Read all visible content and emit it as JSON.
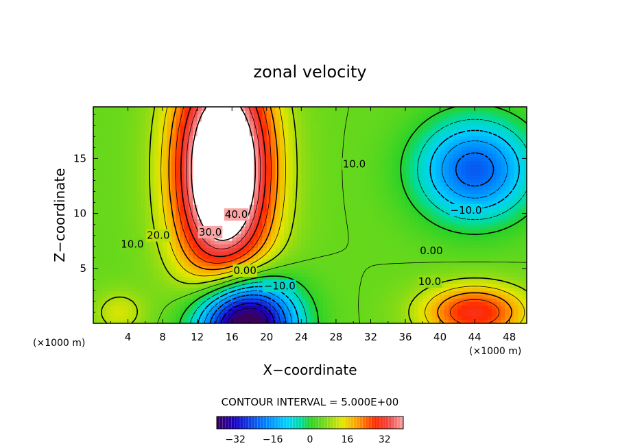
{
  "chart_data": {
    "type": "heatmap",
    "title": "zonal velocity",
    "xlabel": "X−coordinate",
    "ylabel": "Z−coordinate",
    "x_unit_left": "(×1000 m)",
    "x_unit_right": "(×1000 m)",
    "xlim": [
      0,
      50
    ],
    "ylim": [
      0,
      19.7
    ],
    "xticks": [
      4,
      8,
      12,
      16,
      20,
      24,
      28,
      32,
      36,
      40,
      44,
      48
    ],
    "yticks": [
      5,
      10,
      15
    ],
    "contour_interval_text": "CONTOUR INTERVAL = 5.000E+00",
    "colorbar": {
      "range": [
        -40,
        40
      ],
      "ticks": [
        -32,
        -16,
        0,
        16,
        32
      ]
    },
    "contour_labels": [
      {
        "text": "40.0",
        "x": 16.5,
        "z": 9.9
      },
      {
        "text": "30.0",
        "x": 13.5,
        "z": 8.3
      },
      {
        "text": "20.0",
        "x": 7.5,
        "z": 8.0
      },
      {
        "text": "10.0",
        "x": 4.5,
        "z": 7.2
      },
      {
        "text": "10.0",
        "x": 30.1,
        "z": 14.5
      },
      {
        "text": "0.00",
        "x": 17.5,
        "z": 4.8
      },
      {
        "text": "−10.0",
        "x": 21.5,
        "z": 3.4
      },
      {
        "text": "−10.0",
        "x": 43.0,
        "z": 10.3
      },
      {
        "text": "0.00",
        "x": 39.0,
        "z": 6.6
      },
      {
        "text": "10.0",
        "x": 38.8,
        "z": 3.8
      }
    ],
    "blobs": [
      {
        "x": 15.0,
        "z": 14.0,
        "sx": 5.5,
        "sz": 10.0,
        "a": 55
      },
      {
        "x": 17.5,
        "z": 0.0,
        "sx": 5.5,
        "sz": 4.0,
        "a": -55
      },
      {
        "x": 44.0,
        "z": 14.0,
        "sx": 6.5,
        "sz": 4.5,
        "a": -28
      },
      {
        "x": 44.0,
        "z": 1.0,
        "sx": 6.0,
        "sz": 2.5,
        "a": 25
      },
      {
        "x": 3.0,
        "z": 1.0,
        "sx": 3.0,
        "sz": 2.0,
        "a": 8
      }
    ],
    "background_value": 5
  }
}
